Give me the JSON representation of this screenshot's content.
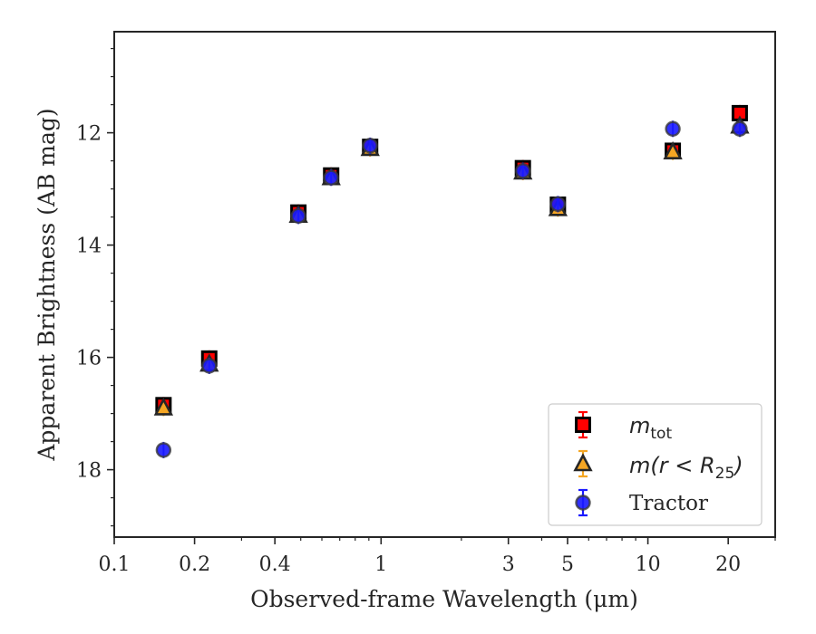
{
  "chart_data": {
    "type": "scatter",
    "title": "",
    "xlabel": "Observed-frame Wavelength (μm)",
    "ylabel": "Apparent Brightness (AB mag)",
    "xscale": "log",
    "xlim": [
      0.1,
      30
    ],
    "ylim": [
      19.2,
      10.2
    ],
    "y_inverted": true,
    "x_ticks": [
      0.1,
      0.2,
      0.4,
      1,
      3,
      5,
      10,
      20
    ],
    "x_tick_labels": [
      "0.1",
      "0.2",
      "0.4",
      "1",
      "3",
      "5",
      "10",
      "20"
    ],
    "y_ticks": [
      12,
      14,
      16,
      18
    ],
    "y_tick_labels": [
      "12",
      "14",
      "16",
      "18"
    ],
    "grid": false,
    "legend_position": "bottom-right",
    "series": [
      {
        "key": "mtot",
        "legend_main": "m",
        "legend_sub": "tot",
        "marker": "square",
        "color": "#ff0000",
        "edge": "#000000",
        "x": [
          0.153,
          0.227,
          0.49,
          0.65,
          0.91,
          3.4,
          4.6,
          12.4,
          22.1
        ],
        "y": [
          16.85,
          16.02,
          13.42,
          12.76,
          12.25,
          12.63,
          13.28,
          12.32,
          11.65
        ]
      },
      {
        "key": "mr25",
        "legend_main": "m(r < R",
        "legend_sub": "25",
        "legend_end": ")",
        "marker": "triangle",
        "color": "#f5a623",
        "edge": "#262626",
        "x": [
          0.153,
          0.227,
          0.49,
          0.65,
          0.91,
          3.4,
          4.6,
          12.4,
          22.1
        ],
        "y": [
          16.9,
          16.12,
          13.47,
          12.8,
          12.28,
          12.7,
          13.35,
          12.34,
          11.88
        ]
      },
      {
        "key": "tractor",
        "legend_main": "Tractor",
        "marker": "circle",
        "color": "#1a1aff",
        "edge": "#3a3a3a",
        "x": [
          0.153,
          0.227,
          0.49,
          0.65,
          0.91,
          3.4,
          4.6,
          12.4,
          22.1
        ],
        "y": [
          17.65,
          16.15,
          13.48,
          12.8,
          12.23,
          12.68,
          13.27,
          11.93,
          11.93
        ]
      }
    ]
  }
}
